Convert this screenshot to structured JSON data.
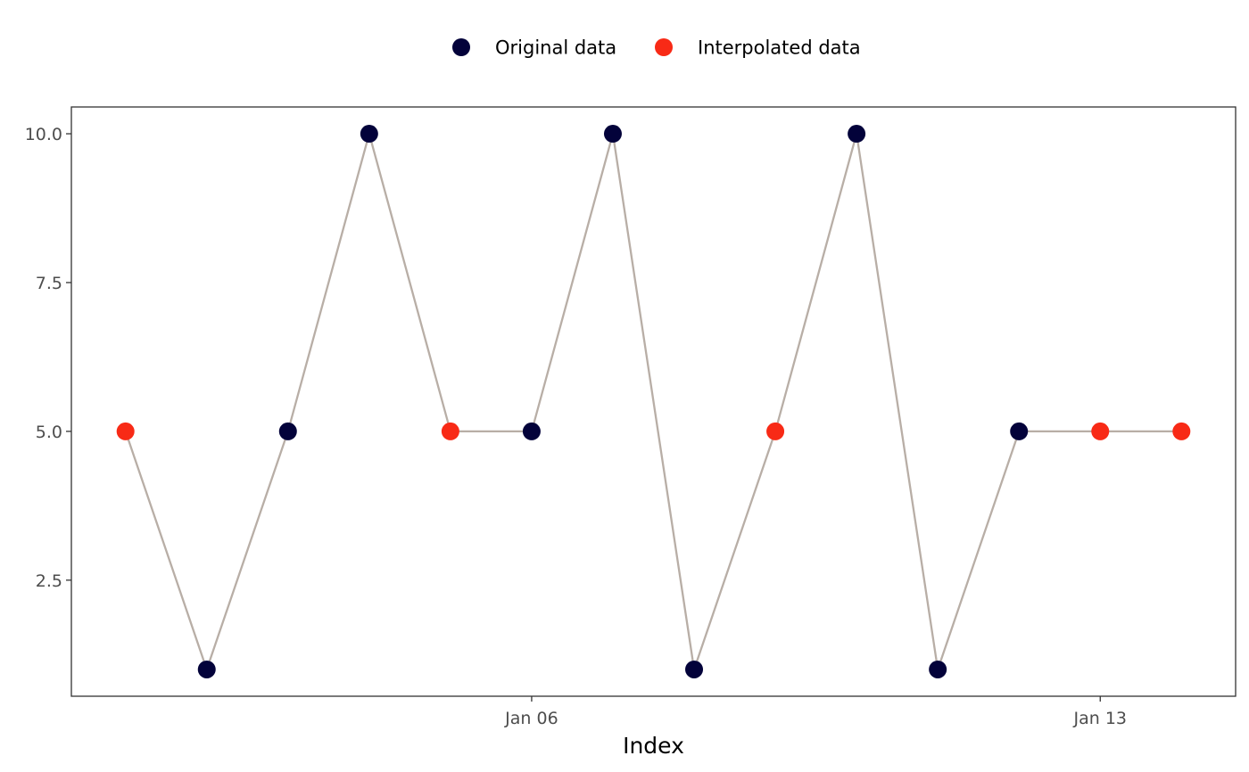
{
  "chart_data": {
    "type": "line",
    "xlabel": "Index",
    "ylabel": "",
    "x": [
      "2020-01-01",
      "2020-01-02",
      "2020-01-03",
      "2020-01-04",
      "2020-01-05",
      "2020-01-06",
      "2020-01-07",
      "2020-01-08",
      "2020-01-09",
      "2020-01-10",
      "2020-01-11",
      "2020-01-12",
      "2020-01-13",
      "2020-01-14"
    ],
    "values": [
      5,
      1,
      5,
      10,
      5,
      5,
      10,
      1,
      5,
      10,
      1,
      5,
      5,
      5
    ],
    "point_series": [
      "Interpolated data",
      "Original data",
      "Original data",
      "Original data",
      "Interpolated data",
      "Original data",
      "Original data",
      "Original data",
      "Interpolated data",
      "Original data",
      "Original data",
      "Original data",
      "Interpolated data",
      "Interpolated data"
    ],
    "x_ticks": [
      {
        "value": "2020-01-06",
        "label": "Jan 06"
      },
      {
        "value": "2020-01-13",
        "label": "Jan 13"
      }
    ],
    "y_ticks": [
      {
        "value": 2.5,
        "label": "2.5"
      },
      {
        "value": 5.0,
        "label": "5.0"
      },
      {
        "value": 7.5,
        "label": "7.5"
      },
      {
        "value": 10.0,
        "label": "10.0"
      }
    ],
    "ylim": [
      0.55,
      10.45
    ],
    "xlim": [
      "2019-12-31T08:00",
      "2020-01-14T16:00"
    ],
    "grid": false,
    "legend": {
      "placement": "top",
      "entries": [
        {
          "name": "Original data",
          "color": "#03023a"
        },
        {
          "name": "Interpolated data",
          "color": "#f82a16"
        }
      ]
    },
    "line_color": "#b8aea6"
  }
}
